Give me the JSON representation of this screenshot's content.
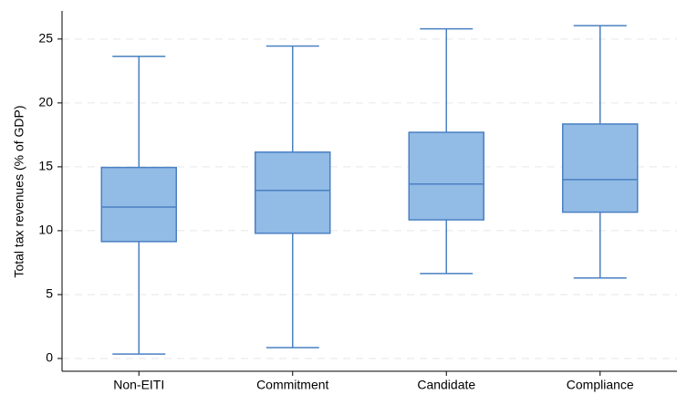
{
  "chart_data": {
    "type": "box",
    "y_label": "Total tax revenues (% of GDP)",
    "categories": [
      "Non-EITI",
      "Commitment",
      "Candidate",
      "Compliance"
    ],
    "boxes": [
      {
        "min": 0.35,
        "q1": 9.15,
        "median": 11.85,
        "q3": 14.95,
        "max": 23.65
      },
      {
        "min": 0.85,
        "q1": 9.8,
        "median": 13.15,
        "q3": 16.15,
        "max": 24.45
      },
      {
        "min": 6.65,
        "q1": 10.85,
        "median": 13.65,
        "q3": 17.7,
        "max": 25.8
      },
      {
        "min": 6.3,
        "q1": 11.45,
        "median": 14.0,
        "q3": 18.35,
        "max": 26.05
      }
    ],
    "color": "#92bbe6",
    "edge_color": "#4a80c2",
    "ylim": [
      -1,
      27.2
    ],
    "yticks": [
      0,
      5,
      10,
      15,
      20,
      25
    ],
    "grid": true
  }
}
